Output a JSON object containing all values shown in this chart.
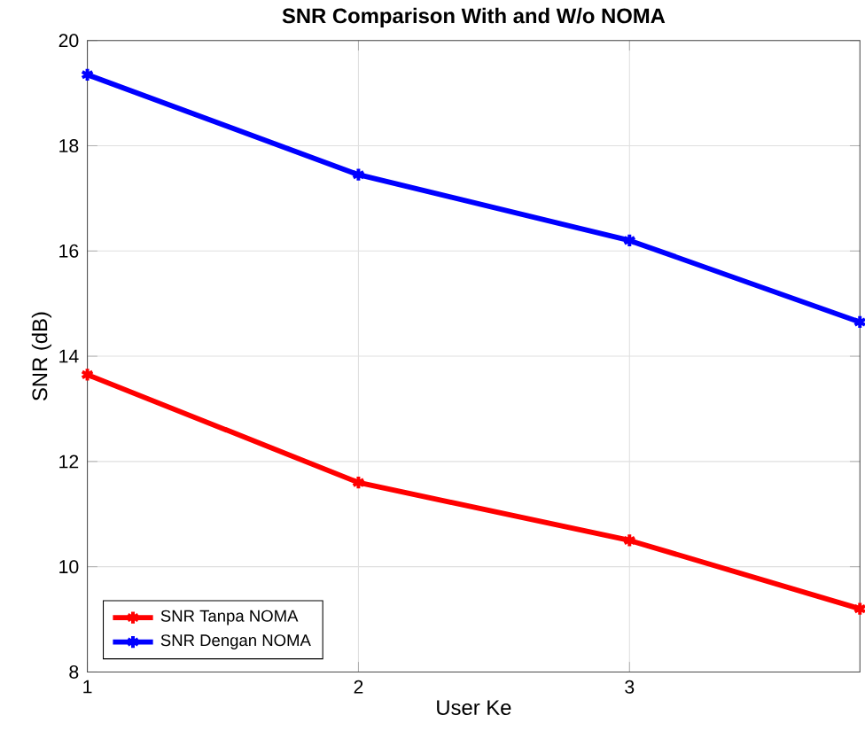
{
  "chart_data": {
    "type": "line",
    "title": "SNR Comparison With and W/o NOMA",
    "xlabel": "User Ke",
    "ylabel": "SNR (dB)",
    "xlim": [
      1,
      3.85
    ],
    "xticks": [
      1,
      2,
      3
    ],
    "ylim": [
      8,
      20
    ],
    "yticks": [
      8,
      10,
      12,
      14,
      16,
      18,
      20
    ],
    "grid": true,
    "legend": "bottom left",
    "marker": "cross",
    "line_style": "solid",
    "series": [
      {
        "name": "SNR Tanpa NOMA",
        "color": "#ff0000",
        "x": [
          1,
          2,
          3,
          3.85
        ],
        "values": [
          13.65,
          11.6,
          10.5,
          9.2
        ]
      },
      {
        "name": "SNR Dengan NOMA",
        "color": "#0000ff",
        "x": [
          1,
          2,
          3,
          3.85
        ],
        "values": [
          19.35,
          17.45,
          16.2,
          14.65
        ]
      }
    ]
  }
}
